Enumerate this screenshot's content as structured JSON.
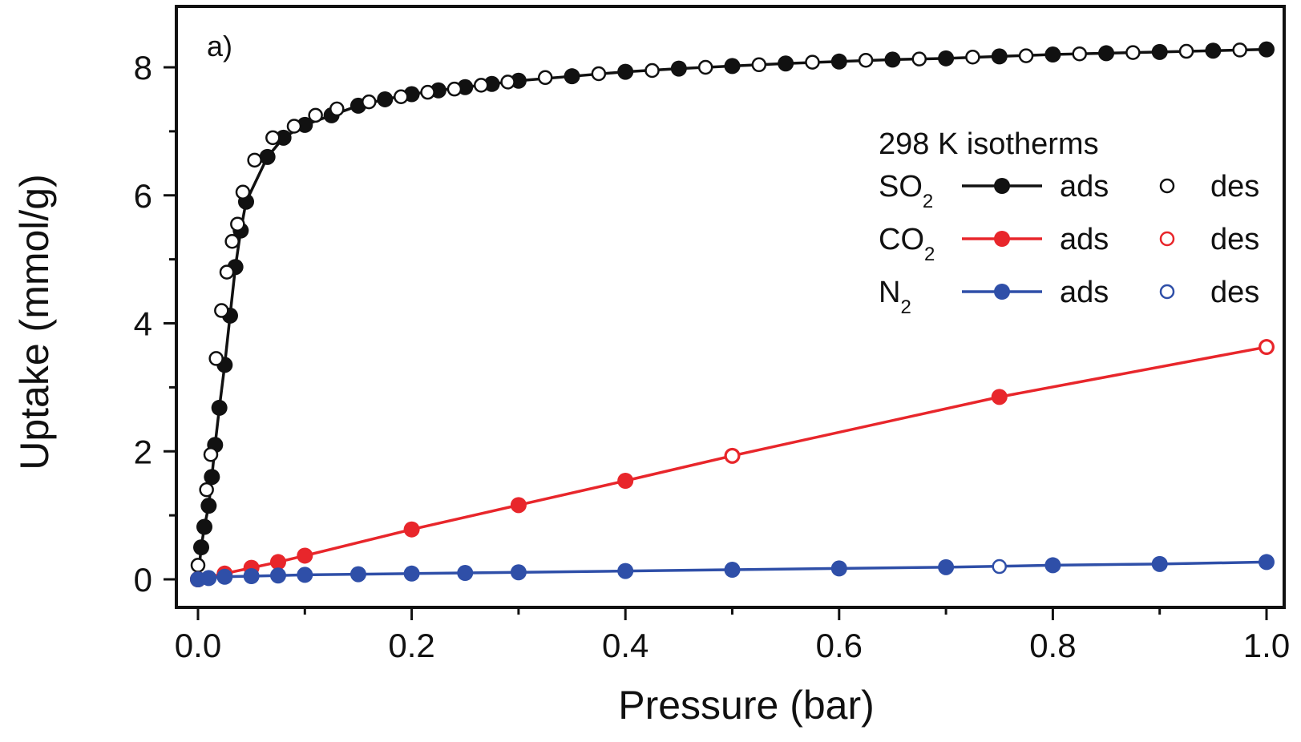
{
  "chart_data": {
    "type": "scatter",
    "panel_label": "a)",
    "title": "",
    "xlabel": "Pressure (bar)",
    "ylabel": "Uptake (mmol/g)",
    "xlim": [
      -0.02,
      1.02
    ],
    "ylim": [
      -0.4,
      9.1
    ],
    "x_ticks": [
      0.0,
      0.2,
      0.4,
      0.6,
      0.8,
      1.0
    ],
    "x_tick_labels": [
      "0.0",
      "0.2",
      "0.4",
      "0.6",
      "0.8",
      "1.0"
    ],
    "y_ticks": [
      0,
      2,
      4,
      6,
      8
    ],
    "y_tick_labels": [
      "0",
      "2",
      "4",
      "6",
      "8"
    ],
    "grid": false,
    "legend": {
      "placement": "top-right",
      "title": "298 K isotherms",
      "entries": [
        {
          "gas": "SO",
          "sub": "2",
          "ads_label": "ads",
          "des_label": "des",
          "color": "#111111"
        },
        {
          "gas": "CO",
          "sub": "2",
          "ads_label": "ads",
          "des_label": "des",
          "color": "#e8262b"
        },
        {
          "gas": "N",
          "sub": "2",
          "ads_label": "ads",
          "des_label": "des",
          "color": "#2f4fa8"
        }
      ]
    },
    "series": [
      {
        "name": "SO2 ads",
        "color": "#111111",
        "marker": "filled",
        "line": "solid",
        "x": [
          0.0,
          0.003,
          0.006,
          0.01,
          0.013,
          0.016,
          0.02,
          0.025,
          0.03,
          0.035,
          0.04,
          0.045,
          0.065,
          0.08,
          0.1,
          0.125,
          0.15,
          0.175,
          0.2,
          0.225,
          0.25,
          0.275,
          0.3,
          0.35,
          0.4,
          0.45,
          0.5,
          0.55,
          0.6,
          0.65,
          0.7,
          0.75,
          0.8,
          0.85,
          0.9,
          0.95,
          1.0
        ],
        "y": [
          0.0,
          0.5,
          0.82,
          1.15,
          1.6,
          2.1,
          2.68,
          3.35,
          4.12,
          4.88,
          5.45,
          5.9,
          6.6,
          6.9,
          7.1,
          7.25,
          7.4,
          7.5,
          7.58,
          7.64,
          7.69,
          7.74,
          7.79,
          7.86,
          7.93,
          7.98,
          8.02,
          8.06,
          8.09,
          8.12,
          8.14,
          8.17,
          8.2,
          8.22,
          8.24,
          8.26,
          8.28
        ]
      },
      {
        "name": "SO2 des",
        "color": "#111111",
        "marker": "open",
        "line": "none",
        "x": [
          0.0,
          0.008,
          0.012,
          0.017,
          0.022,
          0.027,
          0.032,
          0.037,
          0.042,
          0.053,
          0.07,
          0.09,
          0.11,
          0.13,
          0.16,
          0.19,
          0.215,
          0.24,
          0.265,
          0.29,
          0.325,
          0.375,
          0.425,
          0.475,
          0.525,
          0.575,
          0.625,
          0.675,
          0.725,
          0.775,
          0.825,
          0.875,
          0.925,
          0.975
        ],
        "y": [
          0.22,
          1.4,
          1.95,
          3.45,
          4.2,
          4.8,
          5.28,
          5.55,
          6.05,
          6.55,
          6.9,
          7.08,
          7.25,
          7.35,
          7.46,
          7.54,
          7.61,
          7.66,
          7.72,
          7.77,
          7.84,
          7.9,
          7.95,
          8.0,
          8.04,
          8.08,
          8.11,
          8.13,
          8.16,
          8.18,
          8.21,
          8.23,
          8.25,
          8.27
        ]
      },
      {
        "name": "CO2 ads",
        "color": "#e8262b",
        "marker": "filled",
        "line": "solid",
        "x": [
          0.0,
          0.025,
          0.05,
          0.075,
          0.1,
          0.2,
          0.3,
          0.4,
          0.5,
          0.75,
          1.0
        ],
        "y": [
          0.0,
          0.09,
          0.18,
          0.27,
          0.37,
          0.78,
          1.16,
          1.54,
          1.93,
          2.85,
          3.63
        ]
      },
      {
        "name": "CO2 des",
        "color": "#e8262b",
        "marker": "open",
        "line": "none",
        "x": [
          0.5,
          1.0
        ],
        "y": [
          1.93,
          3.63
        ]
      },
      {
        "name": "N2 ads",
        "color": "#2f4fa8",
        "marker": "filled",
        "line": "solid",
        "x": [
          0.0,
          0.01,
          0.025,
          0.05,
          0.075,
          0.1,
          0.15,
          0.2,
          0.25,
          0.3,
          0.4,
          0.5,
          0.6,
          0.7,
          0.8,
          0.9,
          1.0
        ],
        "y": [
          0.0,
          0.02,
          0.04,
          0.05,
          0.06,
          0.07,
          0.08,
          0.09,
          0.1,
          0.11,
          0.13,
          0.15,
          0.17,
          0.19,
          0.22,
          0.24,
          0.27
        ]
      },
      {
        "name": "N2 des",
        "color": "#2f4fa8",
        "marker": "open",
        "line": "none",
        "x": [
          0.75
        ],
        "y": [
          0.2
        ]
      }
    ]
  }
}
